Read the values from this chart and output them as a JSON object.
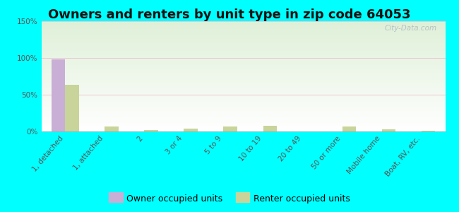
{
  "title": "Owners and renters by unit type in zip code 64053",
  "categories": [
    "1, detached",
    "1, attached",
    "2",
    "3 or 4",
    "5 to 9",
    "10 to 19",
    "20 to 49",
    "50 or more",
    "Mobile home",
    "Boat, RV, etc."
  ],
  "owner_values": [
    98,
    0,
    0,
    0,
    0,
    0,
    0,
    0,
    0,
    0
  ],
  "renter_values": [
    63,
    7,
    2,
    4,
    7,
    8,
    0,
    7,
    3,
    1
  ],
  "owner_color": "#c9aed6",
  "renter_color": "#c8d49a",
  "outer_bg": "#00ffff",
  "ylim": [
    0,
    150
  ],
  "yticks": [
    0,
    50,
    100,
    150
  ],
  "ytick_labels": [
    "0%",
    "50%",
    "100%",
    "150%"
  ],
  "bar_width": 0.35,
  "legend_owner": "Owner occupied units",
  "legend_renter": "Renter occupied units",
  "watermark": "City-Data.com",
  "title_fontsize": 13,
  "tick_fontsize": 7.5,
  "legend_fontsize": 9
}
